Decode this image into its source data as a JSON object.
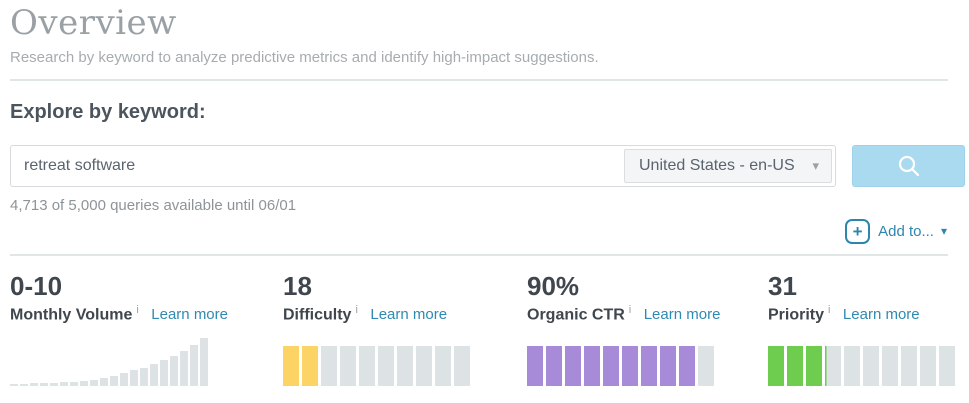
{
  "header": {
    "title": "Overview",
    "subtitle": "Research by keyword to analyze predictive metrics and identify high-impact suggestions."
  },
  "explore": {
    "heading": "Explore by keyword:",
    "keyword_input": {
      "value": "retreat software"
    },
    "locale_dropdown": {
      "selected": "United States - en-US"
    },
    "queries_note": "4,713 of 5,000 queries available until 06/01",
    "add_to": {
      "label": "Add to..."
    }
  },
  "icons": {
    "caret_down": "▾",
    "plus": "+",
    "info": "i"
  },
  "metrics": [
    {
      "value": "0-10",
      "label": "Monthly Volume",
      "learn_more": "Learn more"
    },
    {
      "value": "18",
      "label": "Difficulty",
      "learn_more": "Learn more"
    },
    {
      "value": "90%",
      "label": "Organic CTR",
      "learn_more": "Learn more"
    },
    {
      "value": "31",
      "label": "Priority",
      "learn_more": "Learn more"
    }
  ],
  "chart_data": [
    {
      "id": "monthly-volume-histogram",
      "type": "bar",
      "title": "Monthly Volume 0-10",
      "values": [
        2,
        2,
        3,
        3,
        3,
        4,
        4,
        5,
        6,
        8,
        10,
        13,
        16,
        18,
        22,
        26,
        30,
        35,
        41,
        48
      ],
      "bar_color": "#dde3e4",
      "description": "search volume distribution histogram, all bars gray, increasing left to right"
    },
    {
      "id": "difficulty-gauge",
      "type": "bar",
      "title": "Difficulty 18 of 100",
      "segments": 10,
      "filled": 2,
      "value": 18,
      "max": 100,
      "fill_color": "#fcd465",
      "empty_color": "#dde3e4"
    },
    {
      "id": "organic-ctr-gauge",
      "type": "bar",
      "title": "Organic CTR 90%",
      "segments": 10,
      "filled": 9,
      "value": 90,
      "max": 100,
      "fill_color": "#a78ad8",
      "empty_color": "#dde3e4"
    },
    {
      "id": "priority-gauge",
      "type": "bar",
      "title": "Priority 31 of 100",
      "segments": 10,
      "filled": 3.1,
      "value": 31,
      "max": 100,
      "fill_color": "#6ecc4f",
      "empty_color": "#dde3e4"
    }
  ],
  "colors": {
    "accent_blue": "#2f8ab2",
    "button_blue": "#a9daf0",
    "gauge_yellow": "#fcd465",
    "gauge_purple": "#a78ad8",
    "gauge_green": "#6ecc4f",
    "bar_gray": "#dde3e4",
    "title_gray": "#9aa1a6",
    "text_dark": "#3f464d"
  }
}
